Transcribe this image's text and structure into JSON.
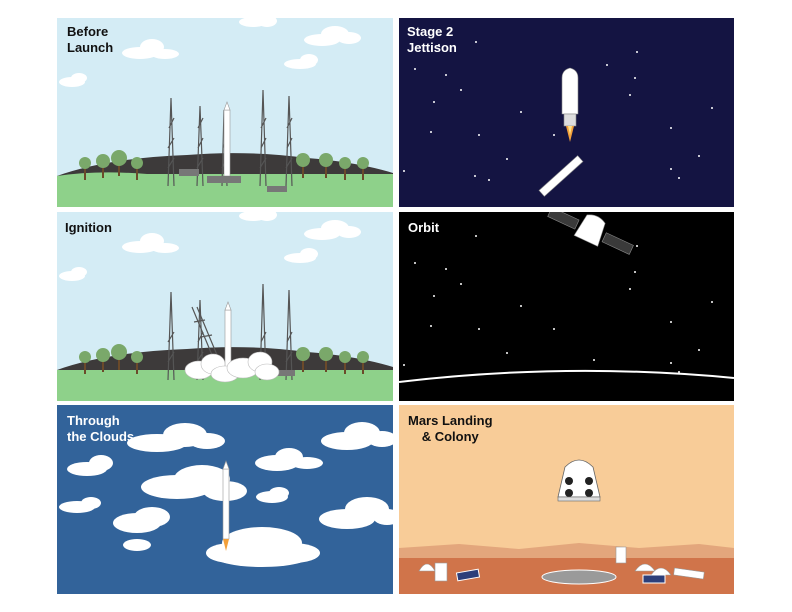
{
  "panels": [
    {
      "id": "before-launch",
      "title": "Before\nLaunch"
    },
    {
      "id": "stage2-jettison",
      "title": "Stage 2\nJettison"
    },
    {
      "id": "ignition",
      "title": "Ignition"
    },
    {
      "id": "orbit",
      "title": "Orbit"
    },
    {
      "id": "through-clouds",
      "title": "Through\nthe Clouds"
    },
    {
      "id": "mars-landing",
      "title": "Mars Landing\n& Colony"
    }
  ],
  "colors": {
    "sky": "#d4ecf5",
    "grass": "#8ed18a",
    "hill": "#3d3a3a",
    "night": "#141442",
    "space": "#000000",
    "cloud_sky": "#32639a",
    "mars_sky": "#f8cc98",
    "mars_ground": "#d0744a"
  }
}
